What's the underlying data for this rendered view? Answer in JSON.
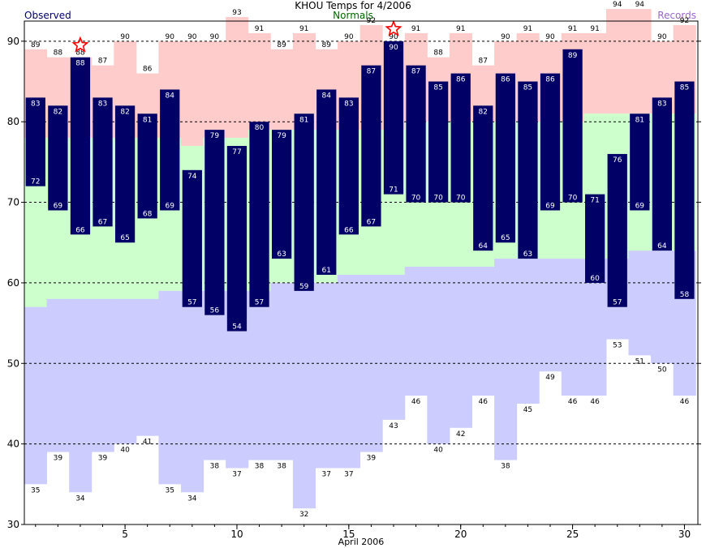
{
  "chart_data": {
    "type": "bar",
    "title": "KHOU Temps for 4/2006",
    "legend": {
      "observed": "Observed",
      "normals": "Normals",
      "records": "Records"
    },
    "xlabel": "April 2006",
    "x_ticks": [
      5,
      10,
      15,
      20,
      25,
      30
    ],
    "y_ticks": [
      30,
      40,
      50,
      60,
      70,
      80,
      90
    ],
    "xlim": [
      0.5,
      30.6
    ],
    "ylim": [
      30,
      92.5
    ],
    "grid_y": [
      40,
      50,
      60,
      70,
      80,
      90
    ],
    "days": [
      1,
      2,
      3,
      4,
      5,
      6,
      7,
      8,
      9,
      10,
      11,
      12,
      13,
      14,
      15,
      16,
      17,
      18,
      19,
      20,
      21,
      22,
      23,
      24,
      25,
      26,
      27,
      28,
      29,
      30
    ],
    "record_high": [
      89,
      88,
      88,
      87,
      90,
      86,
      90,
      90,
      90,
      93,
      91,
      89,
      91,
      89,
      90,
      92,
      90,
      91,
      88,
      91,
      87,
      90,
      91,
      90,
      91,
      91,
      94,
      94,
      90,
      92
    ],
    "record_low": [
      35,
      39,
      34,
      39,
      40,
      41,
      35,
      34,
      38,
      37,
      38,
      38,
      32,
      37,
      37,
      39,
      43,
      46,
      40,
      42,
      46,
      38,
      45,
      49,
      46,
      46,
      53,
      51,
      50,
      46
    ],
    "normal_high": [
      78,
      78,
      78,
      78,
      78,
      78,
      78,
      77,
      78,
      78,
      79,
      79,
      79,
      79,
      79,
      79,
      79,
      80,
      80,
      80,
      80,
      80,
      80,
      80,
      80,
      81,
      81,
      81,
      81,
      81
    ],
    "normal_low": [
      57,
      58,
      58,
      58,
      58,
      58,
      59,
      59,
      59,
      59,
      59,
      60,
      60,
      60,
      61,
      61,
      61,
      62,
      62,
      62,
      62,
      63,
      63,
      63,
      63,
      63,
      63,
      64,
      64,
      64
    ],
    "observed_high": [
      83,
      82,
      88,
      83,
      82,
      81,
      84,
      74,
      79,
      77,
      80,
      79,
      81,
      84,
      83,
      87,
      90,
      87,
      85,
      86,
      82,
      86,
      85,
      86,
      89,
      71,
      76,
      81,
      83,
      85
    ],
    "observed_low": [
      72,
      69,
      66,
      67,
      65,
      68,
      69,
      57,
      56,
      54,
      57,
      63,
      59,
      61,
      66,
      67,
      71,
      70,
      70,
      70,
      64,
      65,
      63,
      69,
      70,
      60,
      57,
      69,
      64,
      58
    ],
    "record_high_days": [
      3,
      17
    ],
    "colors": {
      "record_band": "#ffcccc",
      "normal_band": "#ccffcc",
      "lower_band": "#ccccff",
      "observed_bar": "#000066",
      "star": "#ff0000",
      "grid": "#000000"
    }
  }
}
